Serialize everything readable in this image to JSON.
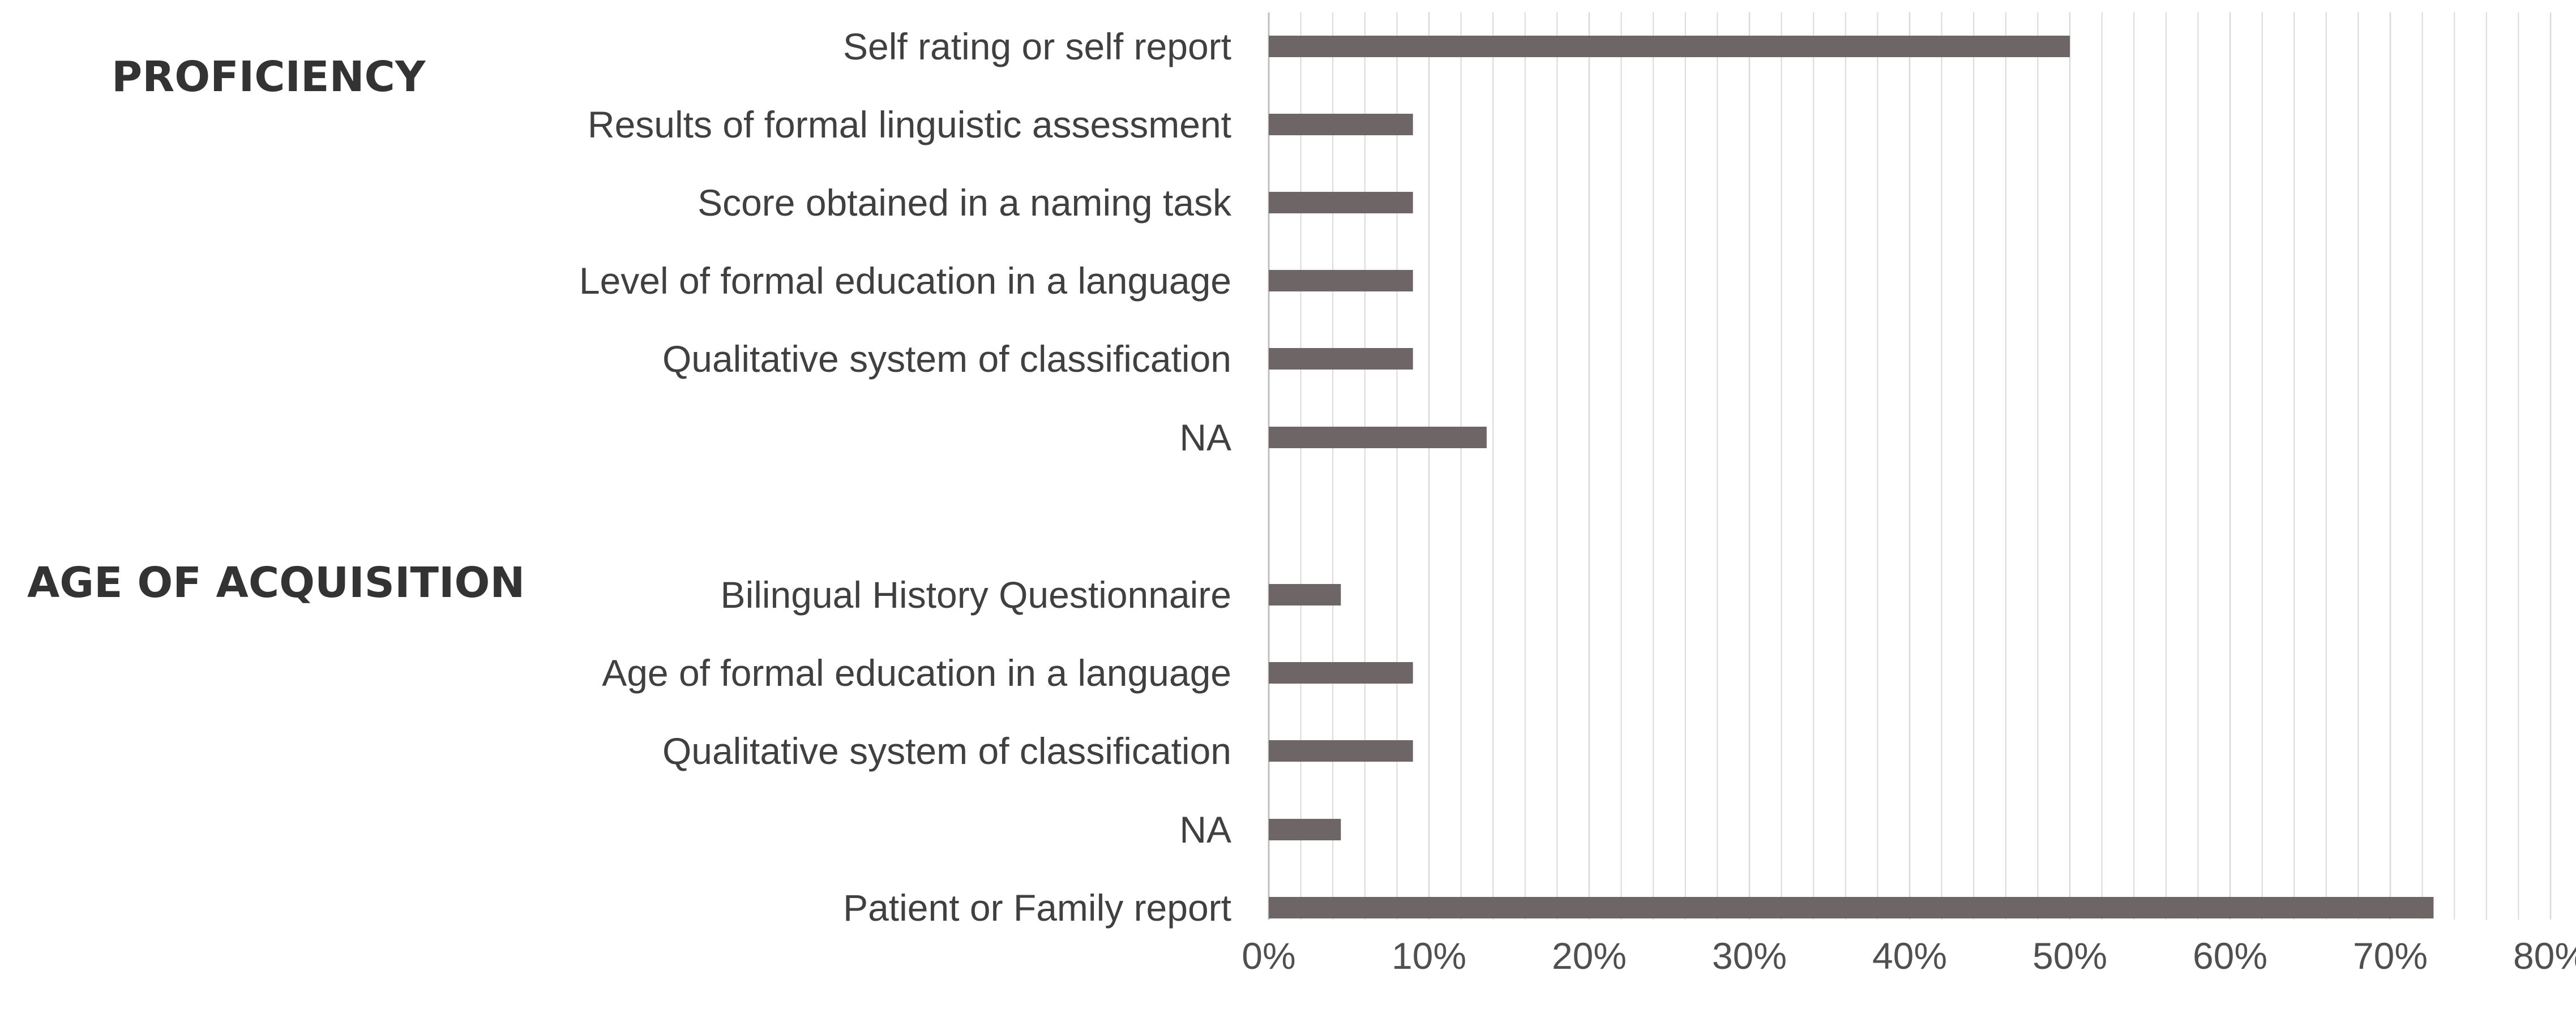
{
  "chart_data": {
    "type": "bar",
    "orientation": "horizontal",
    "grid": "vertical",
    "xlim": [
      0,
      80
    ],
    "major_ticks": [
      0,
      10,
      20,
      30,
      40,
      50,
      60,
      70,
      80
    ],
    "minor_tick_step": 2,
    "tick_labels": [
      "0%",
      "10%",
      "20%",
      "30%",
      "40%",
      "50%",
      "60%",
      "70%",
      "80%"
    ],
    "groups": [
      {
        "label": "PROFICIENCY",
        "categories": [
          "Self rating or self report",
          "Results of formal linguistic  assessment",
          "Score obtained in a naming task",
          "Level of formal education in a language",
          "Qualitative system of classification",
          "NA"
        ],
        "values": [
          50,
          9,
          9,
          9,
          9,
          13.6
        ]
      },
      {
        "label": "AGE OF ACQUISITION",
        "categories": [
          "Bilingual History Questionnaire",
          "Age of formal education in a language",
          "Qualitative system of classification",
          "NA",
          "Patient or Family report"
        ],
        "values": [
          4.5,
          9,
          9,
          4.5,
          72.7
        ]
      }
    ],
    "colors": {
      "bar": "#6d6566",
      "grid": "#d9d9d9",
      "axis": "#bfbfbf"
    }
  }
}
